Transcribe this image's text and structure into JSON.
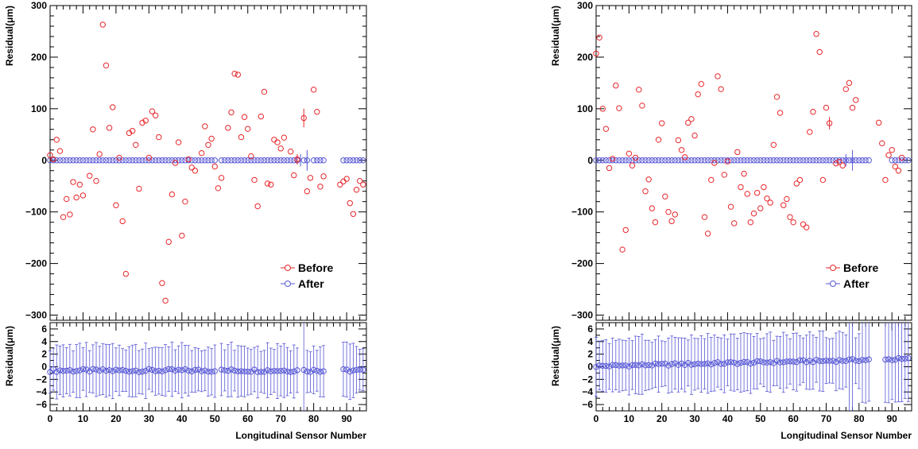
{
  "chart_data": [
    {
      "type": "scatter",
      "x_label": "Longitudinal Sensor Number",
      "main_y_label": "Residual(μm)",
      "ratio_y_label": "Residual(μm)",
      "x_range": [
        0,
        96
      ],
      "main_y_range": [
        -310,
        300
      ],
      "ratio_y_range": [
        -7,
        7
      ],
      "x_ticks": [
        "0",
        "10",
        "20",
        "30",
        "40",
        "50",
        "60",
        "70",
        "80",
        "90"
      ],
      "main_y_ticks": [
        "300",
        "200",
        "100",
        "0",
        "−100",
        "−200",
        "−300"
      ],
      "ratio_y_ticks": [
        "6",
        "4",
        "2",
        "0",
        "−2",
        "−4",
        "−6"
      ],
      "legend": {
        "before": "Before",
        "after": "After"
      },
      "colors": {
        "before": "#e8262a",
        "after": "#5757d6"
      },
      "before": [
        [
          0,
          10
        ],
        [
          1,
          2
        ],
        [
          2,
          40
        ],
        [
          3,
          18
        ],
        [
          4,
          -110
        ],
        [
          5,
          -75
        ],
        [
          6,
          -105
        ],
        [
          7,
          -42
        ],
        [
          8,
          -72
        ],
        [
          9,
          -47
        ],
        [
          10,
          -68
        ],
        [
          12,
          -30
        ],
        [
          13,
          60
        ],
        [
          14,
          -40
        ],
        [
          15,
          12
        ],
        [
          16,
          263
        ],
        [
          17,
          184
        ],
        [
          18,
          63
        ],
        [
          19,
          103
        ],
        [
          20,
          -87
        ],
        [
          21,
          5
        ],
        [
          22,
          -118
        ],
        [
          23,
          -220
        ],
        [
          24,
          53
        ],
        [
          25,
          57
        ],
        [
          26,
          30
        ],
        [
          27,
          -55
        ],
        [
          28,
          73
        ],
        [
          29,
          77
        ],
        [
          30,
          5
        ],
        [
          31,
          95
        ],
        [
          32,
          87
        ],
        [
          33,
          45
        ],
        [
          34,
          -238
        ],
        [
          35,
          -272
        ],
        [
          36,
          -158
        ],
        [
          37,
          -66
        ],
        [
          38,
          -5
        ],
        [
          39,
          35
        ],
        [
          40,
          -146
        ],
        [
          41,
          -80
        ],
        [
          42,
          2
        ],
        [
          43,
          -14
        ],
        [
          44,
          -20
        ],
        [
          46,
          14
        ],
        [
          47,
          66
        ],
        [
          48,
          30
        ],
        [
          49,
          42
        ],
        [
          50,
          -12
        ],
        [
          51,
          -54
        ],
        [
          52,
          -34
        ],
        [
          54,
          63
        ],
        [
          55,
          93
        ],
        [
          56,
          168
        ],
        [
          57,
          166
        ],
        [
          58,
          45
        ],
        [
          59,
          84
        ],
        [
          60,
          61
        ],
        [
          61,
          8
        ],
        [
          62,
          -38
        ],
        [
          63,
          -89
        ],
        [
          64,
          85
        ],
        [
          65,
          133
        ],
        [
          66,
          -45
        ],
        [
          67,
          -47
        ],
        [
          68,
          40
        ],
        [
          69,
          35
        ],
        [
          70,
          23
        ],
        [
          71,
          44
        ],
        [
          73,
          17
        ],
        [
          74,
          -29
        ],
        [
          75,
          2
        ],
        [
          77,
          82
        ],
        [
          78,
          -60
        ],
        [
          79,
          -34
        ],
        [
          80,
          137
        ],
        [
          81,
          94
        ],
        [
          82,
          -51
        ],
        [
          83,
          -31
        ],
        [
          88,
          -47
        ],
        [
          89,
          -41
        ],
        [
          90,
          -36
        ],
        [
          91,
          -83
        ],
        [
          92,
          -104
        ],
        [
          93,
          -57
        ],
        [
          94,
          -40
        ],
        [
          95,
          -47
        ]
      ],
      "after_missing": [
        51,
        76,
        79,
        84,
        85,
        86,
        87,
        88
      ],
      "ratio_missing": [
        51,
        76,
        84,
        85,
        86,
        87,
        88
      ]
    },
    {
      "type": "scatter",
      "x_label": "Longitudinal Sensor Number",
      "main_y_label": "Residual(μm)",
      "ratio_y_label": "Residual(μm)",
      "x_range": [
        0,
        96
      ],
      "main_y_range": [
        -310,
        300
      ],
      "ratio_y_range": [
        -7,
        7
      ],
      "x_ticks": [
        "0",
        "10",
        "20",
        "30",
        "40",
        "50",
        "60",
        "70",
        "80",
        "90"
      ],
      "main_y_ticks": [
        "300",
        "200",
        "100",
        "0",
        "−100",
        "−200",
        "−300"
      ],
      "ratio_y_ticks": [
        "6",
        "4",
        "2",
        "0",
        "−2",
        "−4",
        "−6"
      ],
      "legend": {
        "before": "Before",
        "after": "After"
      },
      "colors": {
        "before": "#e8262a",
        "after": "#5757d6"
      },
      "before": [
        [
          0,
          207
        ],
        [
          1,
          238
        ],
        [
          2,
          100
        ],
        [
          3,
          61
        ],
        [
          4,
          -15
        ],
        [
          5,
          3
        ],
        [
          6,
          145
        ],
        [
          7,
          101
        ],
        [
          8,
          -173
        ],
        [
          9,
          -135
        ],
        [
          10,
          13
        ],
        [
          11,
          -10
        ],
        [
          12,
          5
        ],
        [
          13,
          137
        ],
        [
          14,
          106
        ],
        [
          15,
          -60
        ],
        [
          16,
          -37
        ],
        [
          17,
          -93
        ],
        [
          18,
          -120
        ],
        [
          19,
          40
        ],
        [
          20,
          72
        ],
        [
          21,
          -70
        ],
        [
          22,
          -100
        ],
        [
          23,
          -118
        ],
        [
          24,
          -105
        ],
        [
          25,
          39
        ],
        [
          26,
          20
        ],
        [
          27,
          6
        ],
        [
          28,
          73
        ],
        [
          29,
          80
        ],
        [
          30,
          48
        ],
        [
          31,
          128
        ],
        [
          32,
          148
        ],
        [
          33,
          -110
        ],
        [
          34,
          -142
        ],
        [
          35,
          -38
        ],
        [
          36,
          -5
        ],
        [
          37,
          163
        ],
        [
          38,
          138
        ],
        [
          39,
          -28
        ],
        [
          40,
          -2
        ],
        [
          41,
          -90
        ],
        [
          42,
          -122
        ],
        [
          43,
          16
        ],
        [
          44,
          -52
        ],
        [
          45,
          -26
        ],
        [
          46,
          -65
        ],
        [
          47,
          -120
        ],
        [
          48,
          -103
        ],
        [
          49,
          -63
        ],
        [
          50,
          -93
        ],
        [
          51,
          -52
        ],
        [
          52,
          -74
        ],
        [
          53,
          -82
        ],
        [
          54,
          30
        ],
        [
          55,
          123
        ],
        [
          56,
          92
        ],
        [
          57,
          -87
        ],
        [
          58,
          -75
        ],
        [
          59,
          -110
        ],
        [
          60,
          -120
        ],
        [
          61,
          -45
        ],
        [
          62,
          -38
        ],
        [
          63,
          -124
        ],
        [
          64,
          -130
        ],
        [
          65,
          55
        ],
        [
          66,
          94
        ],
        [
          67,
          245
        ],
        [
          68,
          210
        ],
        [
          69,
          -38
        ],
        [
          70,
          102
        ],
        [
          71,
          72
        ],
        [
          73,
          -6
        ],
        [
          74,
          -3
        ],
        [
          75,
          -10
        ],
        [
          76,
          138
        ],
        [
          77,
          150
        ],
        [
          78,
          102
        ],
        [
          79,
          117
        ],
        [
          86,
          73
        ],
        [
          87,
          33
        ],
        [
          88,
          -38
        ],
        [
          89,
          10
        ],
        [
          90,
          20
        ],
        [
          91,
          -12
        ],
        [
          92,
          -20
        ],
        [
          93,
          5
        ]
      ],
      "after_missing": [
        84,
        85,
        86,
        87,
        88,
        89
      ],
      "ratio_missing": [
        84,
        85,
        86,
        87
      ]
    }
  ]
}
